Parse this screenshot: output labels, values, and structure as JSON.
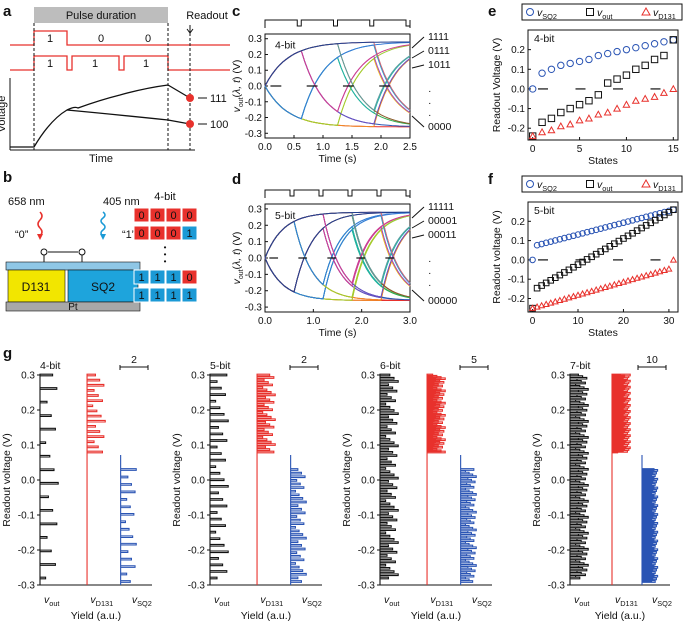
{
  "panel_labels": [
    "a",
    "b",
    "c",
    "d",
    "e",
    "f",
    "g"
  ],
  "panel_a": {
    "pulse_duration": "Pulse duration",
    "readout": "Readout",
    "bits_top": [
      "1",
      "0",
      "0"
    ],
    "bits_bottom": [
      "1",
      "1",
      "1"
    ],
    "ylabel": "Voltage",
    "xlabel": "Time",
    "state_high": "111",
    "state_low": "100",
    "colors": {
      "pulse": "#e8312c",
      "dot": "#e8312c"
    }
  },
  "panel_b": {
    "wavelength_red": "658 nm",
    "wavelength_blue": "405 nm",
    "bit0": "“0”",
    "bit1": "“1”",
    "cell_left": "D131",
    "cell_right": "SQ2",
    "substrate": "Pt",
    "bits_label": "4-bit",
    "codes": [
      [
        "0",
        "0",
        "0",
        "0"
      ],
      [
        "0",
        "0",
        "0",
        "1"
      ],
      [
        "1",
        "1",
        "1",
        "0"
      ],
      [
        "1",
        "1",
        "1",
        "1"
      ]
    ],
    "colors": {
      "red": "#e8312c",
      "blue": "#1b9ad6",
      "yellow": "#f2e600",
      "cyan": "#1ea4dc",
      "grey": "#a8a8a8"
    }
  },
  "chart_data": [
    {
      "id": "c",
      "type": "line",
      "title": "4-bit",
      "xlabel": "Time (s)",
      "ylabel": "v_out(λ, t) (V)",
      "xlim": [
        0.0,
        2.5
      ],
      "ylim": [
        -0.33,
        0.33
      ],
      "xticks": [
        "0.0",
        "0.5",
        "1.0",
        "1.5",
        "2.0",
        "2.5"
      ],
      "yticks": [
        "0.3",
        "0.2",
        "0.1",
        "0.0",
        "-0.1",
        "-0.2",
        "-0.3"
      ],
      "n_bits": 4,
      "series_count": 16,
      "right_labels": [
        "1111",
        "0111",
        "1011",
        "·",
        "·",
        "·",
        "0000"
      ]
    },
    {
      "id": "d",
      "type": "line",
      "title": "5-bit",
      "xlabel": "Time (s)",
      "ylabel": "v_out(λ, t) (V)",
      "xlim": [
        0.0,
        3.0
      ],
      "ylim": [
        -0.33,
        0.33
      ],
      "xticks": [
        "0.0",
        "1.0",
        "2.0",
        "3.0"
      ],
      "yticks": [
        "0.3",
        "0.2",
        "0.1",
        "0.0",
        "-0.1",
        "-0.2",
        "-0.3"
      ],
      "n_bits": 5,
      "series_count": 32,
      "right_labels": [
        "11111",
        "00001",
        "00011",
        "·",
        "·",
        "·",
        "00000"
      ]
    },
    {
      "id": "e",
      "type": "scatter",
      "title": "4-bit",
      "xlabel": "States",
      "ylabel": "Readout Voltage (V)",
      "xlim": [
        -0.5,
        15.5
      ],
      "ylim": [
        -0.26,
        0.3
      ],
      "xticks": [
        "0",
        "5",
        "10",
        "15"
      ],
      "yticks": [
        "0.2",
        "0.1",
        "0.0",
        "-0.1",
        "-0.2"
      ],
      "legend": [
        "v_SQ2",
        "v_out",
        "v_D131"
      ],
      "series": [
        {
          "name": "v_SQ2",
          "values": [
            0.0,
            0.08,
            0.1,
            0.12,
            0.13,
            0.14,
            0.15,
            0.17,
            0.18,
            0.19,
            0.2,
            0.21,
            0.22,
            0.23,
            0.24,
            0.25
          ]
        },
        {
          "name": "v_out",
          "values": [
            -0.24,
            -0.17,
            -0.15,
            -0.12,
            -0.1,
            -0.08,
            -0.06,
            -0.03,
            0.03,
            0.05,
            0.07,
            0.1,
            0.12,
            0.15,
            0.17,
            0.25
          ]
        },
        {
          "name": "v_D131",
          "values": [
            -0.24,
            -0.22,
            -0.21,
            -0.19,
            -0.18,
            -0.16,
            -0.15,
            -0.13,
            -0.12,
            -0.1,
            -0.08,
            -0.06,
            -0.05,
            -0.04,
            -0.02,
            0.0
          ]
        }
      ]
    },
    {
      "id": "f",
      "type": "scatter",
      "title": "5-bit",
      "xlabel": "States",
      "ylabel": "Readout voltage (V)",
      "xlim": [
        -1,
        32
      ],
      "ylim": [
        -0.27,
        0.3
      ],
      "xticks": [
        "0",
        "10",
        "20",
        "30"
      ],
      "yticks": [
        "0.2",
        "0.1",
        "0.0",
        "-0.1",
        "-0.2"
      ],
      "legend": [
        "v_SQ2",
        "v_out",
        "v_D131"
      ],
      "series_ranges": {
        "v_SQ2": [
          0.0,
          0.07,
          0.26
        ],
        "v_out": [
          -0.25,
          -0.16,
          0.26
        ],
        "v_D131": [
          -0.25,
          -0.24,
          0.0
        ]
      }
    },
    {
      "id": "g",
      "type": "histogram",
      "ylabel": "Readout voltage (V)",
      "xlabel": "Yield (a.u.)",
      "ylim": [
        -0.3,
        0.3
      ],
      "yticks": [
        "0.3",
        "0.2",
        "0.1",
        "0.0",
        "-0.1",
        "-0.2",
        "-0.3"
      ],
      "column_labels": [
        "v_out",
        "v_D131",
        "v_SQ2"
      ],
      "subplots": [
        {
          "title": "4-bit",
          "scale": "2",
          "levels": 16
        },
        {
          "title": "5-bit",
          "scale": "2",
          "levels": 32
        },
        {
          "title": "6-bit",
          "scale": "5",
          "levels": 64
        },
        {
          "title": "7-bit",
          "scale": "10",
          "levels": 128
        }
      ]
    }
  ],
  "colors": {
    "red": "#e8312c",
    "blue": "#2a54b4",
    "black": "#111111"
  }
}
